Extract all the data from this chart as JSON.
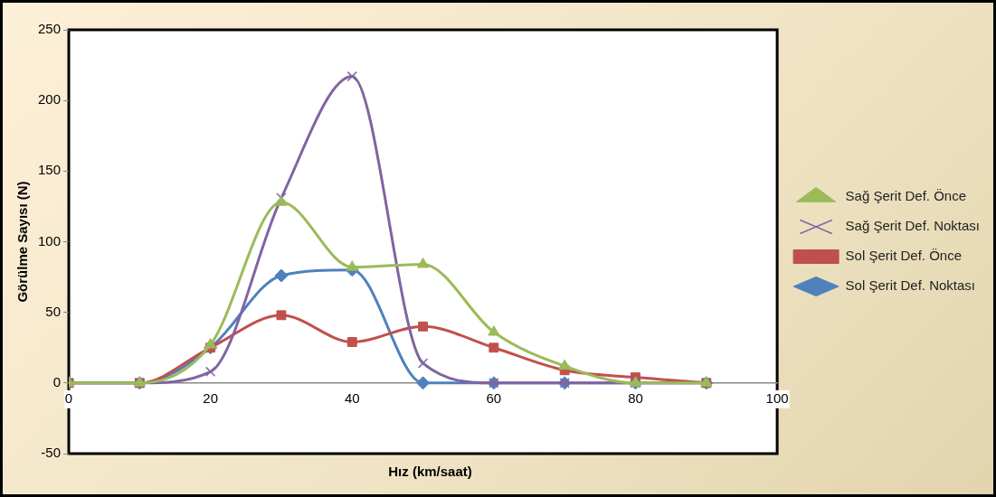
{
  "chart_data": {
    "type": "line",
    "xlabel": "Hız (km/saat)",
    "ylabel": "Görülme Sayısı (N)",
    "x": [
      0,
      10,
      20,
      30,
      40,
      50,
      60,
      70,
      80,
      90
    ],
    "series": [
      {
        "name": "Sağ Şerit Def. Önce",
        "color": "#9bbb59",
        "marker": "triangle",
        "values": [
          0,
          0,
          27,
          128,
          82,
          84,
          36,
          12,
          0,
          0
        ]
      },
      {
        "name": "Sağ Şerit Def. Noktası",
        "color": "#8064a2",
        "marker": "cross",
        "values": [
          0,
          0,
          8,
          131,
          217,
          14,
          0,
          0,
          0,
          0
        ]
      },
      {
        "name": "Sol Şerit Def. Önce",
        "color": "#c0504d",
        "marker": "square",
        "values": [
          0,
          0,
          25,
          48,
          29,
          40,
          25,
          9,
          4,
          0
        ]
      },
      {
        "name": "Sol Şerit Def. Noktası",
        "color": "#4f81bd",
        "marker": "diamond",
        "values": [
          0,
          0,
          25,
          76,
          80,
          0,
          0,
          0,
          0,
          0
        ]
      }
    ],
    "xlim": [
      0,
      100
    ],
    "xticks": [
      0,
      20,
      40,
      60,
      80,
      100
    ],
    "ylim": [
      -50,
      250
    ],
    "yticks": [
      -50,
      0,
      50,
      100,
      150,
      200,
      250
    ],
    "grid": false,
    "legend": "right"
  }
}
